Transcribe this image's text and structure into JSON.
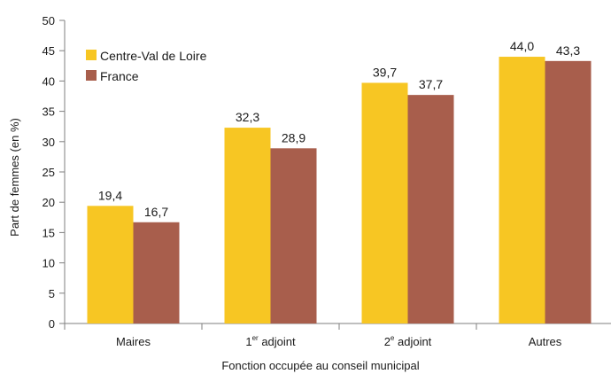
{
  "chart_data": {
    "type": "bar",
    "categories": [
      {
        "label": "Maires",
        "sup": ""
      },
      {
        "label": "1",
        "sup": "er",
        "suffix": " adjoint"
      },
      {
        "label": "2",
        "sup": "e",
        "suffix": " adjoint"
      },
      {
        "label": "Autres",
        "sup": ""
      }
    ],
    "series": [
      {
        "name": "Centre-Val de Loire",
        "color": "#f7c623",
        "values": [
          19.4,
          32.3,
          39.7,
          44.0
        ],
        "labels": [
          "19,4",
          "32,3",
          "39,7",
          "44,0"
        ]
      },
      {
        "name": "France",
        "color": "#a85e4c",
        "values": [
          16.7,
          28.9,
          37.7,
          43.3
        ],
        "labels": [
          "16,7",
          "28,9",
          "37,7",
          "43,3"
        ]
      }
    ],
    "xlabel": "Fonction occupée au conseil municipal",
    "ylabel": "Part de femmes (en %)",
    "ylim": [
      0,
      50
    ],
    "yticks": [
      0,
      5,
      10,
      15,
      20,
      25,
      30,
      35,
      40,
      45,
      50
    ],
    "grid": false,
    "legend": "top-left"
  }
}
